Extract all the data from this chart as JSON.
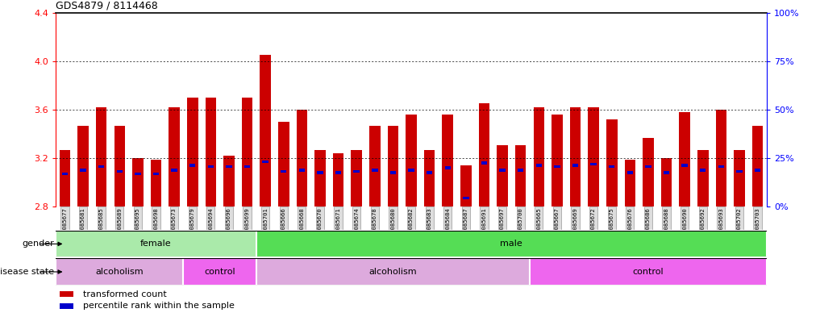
{
  "title": "GDS4879 / 8114468",
  "samples": [
    "GSM1085677",
    "GSM1085681",
    "GSM1085685",
    "GSM1085689",
    "GSM1085695",
    "GSM1085698",
    "GSM1085673",
    "GSM1085679",
    "GSM1085694",
    "GSM1085696",
    "GSM1085699",
    "GSM1085701",
    "GSM1085666",
    "GSM1085668",
    "GSM1085670",
    "GSM1085671",
    "GSM1085674",
    "GSM1085678",
    "GSM1085680",
    "GSM1085682",
    "GSM1085683",
    "GSM1085684",
    "GSM1085687",
    "GSM1085691",
    "GSM1085697",
    "GSM1085700",
    "GSM1085665",
    "GSM1085667",
    "GSM1085669",
    "GSM1085672",
    "GSM1085675",
    "GSM1085676",
    "GSM1085686",
    "GSM1085688",
    "GSM1085690",
    "GSM1085692",
    "GSM1085693",
    "GSM1085702",
    "GSM1085703"
  ],
  "bar_heights": [
    3.27,
    3.47,
    3.62,
    3.47,
    3.2,
    3.19,
    3.62,
    3.7,
    3.7,
    3.22,
    3.7,
    4.05,
    3.5,
    3.6,
    3.27,
    3.24,
    3.27,
    3.47,
    3.47,
    3.56,
    3.27,
    3.56,
    3.14,
    3.65,
    3.31,
    3.31,
    3.62,
    3.56,
    3.62,
    3.62,
    3.52,
    3.19,
    3.37,
    3.2,
    3.58,
    3.27,
    3.6,
    3.27,
    3.47
  ],
  "blue_heights": [
    3.07,
    3.1,
    3.13,
    3.09,
    3.07,
    3.07,
    3.1,
    3.14,
    3.13,
    3.13,
    3.13,
    3.17,
    3.09,
    3.1,
    3.08,
    3.08,
    3.09,
    3.1,
    3.08,
    3.1,
    3.08,
    3.12,
    2.87,
    3.16,
    3.1,
    3.1,
    3.14,
    3.13,
    3.14,
    3.15,
    3.13,
    3.08,
    3.13,
    3.08,
    3.14,
    3.1,
    3.13,
    3.09,
    3.1
  ],
  "baseline": 2.8,
  "ylim": [
    2.8,
    4.4
  ],
  "yticks": [
    2.8,
    3.2,
    3.6,
    4.0,
    4.4
  ],
  "right_yticks": [
    0,
    25,
    50,
    75,
    100
  ],
  "right_ylabels": [
    "0%",
    "25%",
    "50%",
    "75%",
    "100%"
  ],
  "bar_color": "#cc0000",
  "blue_color": "#0000cc",
  "bar_width": 0.6,
  "gender_regions": [
    {
      "label": "female",
      "start": 0,
      "end": 11,
      "color": "#aaeaaa"
    },
    {
      "label": "male",
      "start": 11,
      "end": 39,
      "color": "#55dd55"
    }
  ],
  "disease_regions": [
    {
      "label": "alcoholism",
      "start": 0,
      "end": 7,
      "color": "#ddaadd"
    },
    {
      "label": "control",
      "start": 7,
      "end": 11,
      "color": "#ee66ee"
    },
    {
      "label": "alcoholism",
      "start": 11,
      "end": 26,
      "color": "#ddaadd"
    },
    {
      "label": "control",
      "start": 26,
      "end": 39,
      "color": "#ee66ee"
    }
  ],
  "legend_items": [
    {
      "label": "transformed count",
      "color": "#cc0000"
    },
    {
      "label": "percentile rank within the sample",
      "color": "#0000cc"
    }
  ],
  "grid_lines": [
    3.2,
    3.6,
    4.0
  ],
  "ticklabel_bg": "#dddddd",
  "ticklabel_border": "#999999"
}
